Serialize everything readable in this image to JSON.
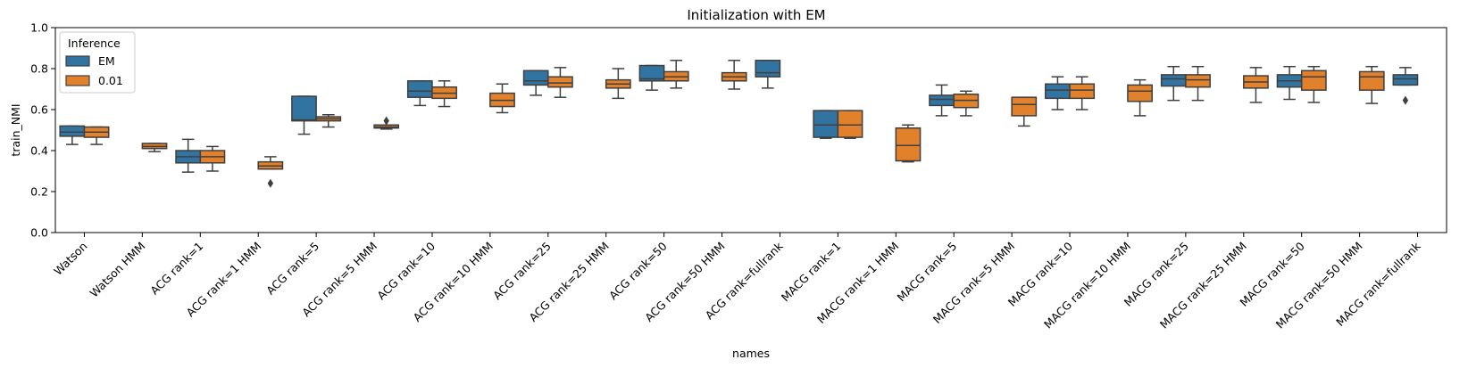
{
  "chart_data": {
    "type": "box",
    "title": "Initialization with EM",
    "xlabel": "names",
    "ylabel": "train_NMI",
    "ylim": [
      0,
      1
    ],
    "yticks": [
      "0.0",
      "0.2",
      "0.4",
      "0.6",
      "0.8",
      "1.0"
    ],
    "grid": false,
    "legend": {
      "title": "Inference",
      "position": "top-left",
      "entries": [
        "EM",
        "0.01"
      ]
    },
    "colors": {
      "EM": "#3274a1",
      "0.01": "#e1812c",
      "line": "#3f3f3f"
    },
    "categories": [
      "Watson",
      "Watson HMM",
      "ACG rank=1",
      "ACG rank=1 HMM",
      "ACG rank=5",
      "ACG rank=5 HMM",
      "ACG rank=10",
      "ACG rank=10 HMM",
      "ACG rank=25",
      "ACG rank=25 HMM",
      "ACG rank=50",
      "ACG rank=50 HMM",
      "ACG rank=fullrank",
      "MACG rank=1",
      "MACG rank=1 HMM",
      "MACG rank=5",
      "MACG rank=5 HMM",
      "MACG rank=10",
      "MACG rank=10 HMM",
      "MACG rank=25",
      "MACG rank=25 HMM",
      "MACG rank=50",
      "MACG rank=50 HMM",
      "MACG rank=fullrank"
    ],
    "series": [
      {
        "name": "EM",
        "boxes": [
          {
            "whislo": 0.43,
            "q1": 0.47,
            "med": 0.49,
            "q3": 0.52,
            "whishi": 0.52,
            "fliers": []
          },
          null,
          {
            "whislo": 0.295,
            "q1": 0.34,
            "med": 0.37,
            "q3": 0.4,
            "whishi": 0.455,
            "fliers": []
          },
          null,
          {
            "whislo": 0.48,
            "q1": 0.545,
            "med": 0.55,
            "q3": 0.665,
            "whishi": 0.665,
            "fliers": []
          },
          null,
          {
            "whislo": 0.62,
            "q1": 0.66,
            "med": 0.69,
            "q3": 0.74,
            "whishi": 0.74,
            "fliers": []
          },
          null,
          {
            "whislo": 0.67,
            "q1": 0.72,
            "med": 0.74,
            "q3": 0.79,
            "whishi": 0.79,
            "fliers": []
          },
          null,
          {
            "whislo": 0.695,
            "q1": 0.74,
            "med": 0.75,
            "q3": 0.815,
            "whishi": 0.815,
            "fliers": []
          },
          null,
          {
            "whislo": 0.705,
            "q1": 0.76,
            "med": 0.78,
            "q3": 0.84,
            "whishi": 0.84,
            "fliers": []
          },
          {
            "whislo": 0.46,
            "q1": 0.465,
            "med": 0.525,
            "q3": 0.595,
            "whishi": 0.595,
            "fliers": []
          },
          null,
          {
            "whislo": 0.57,
            "q1": 0.62,
            "med": 0.65,
            "q3": 0.67,
            "whishi": 0.72,
            "fliers": []
          },
          null,
          {
            "whislo": 0.6,
            "q1": 0.655,
            "med": 0.695,
            "q3": 0.725,
            "whishi": 0.76,
            "fliers": []
          },
          null,
          {
            "whislo": 0.645,
            "q1": 0.715,
            "med": 0.75,
            "q3": 0.77,
            "whishi": 0.81,
            "fliers": []
          },
          null,
          {
            "whislo": 0.65,
            "q1": 0.71,
            "med": 0.74,
            "q3": 0.77,
            "whishi": 0.81,
            "fliers": []
          },
          null,
          {
            "whislo": 0.72,
            "q1": 0.72,
            "med": 0.75,
            "q3": 0.77,
            "whishi": 0.805,
            "fliers": [
              0.645
            ]
          }
        ]
      },
      {
        "name": "0.01",
        "boxes": [
          {
            "whislo": 0.43,
            "q1": 0.465,
            "med": 0.49,
            "q3": 0.515,
            "whishi": 0.515,
            "fliers": []
          },
          {
            "whislo": 0.395,
            "q1": 0.41,
            "med": 0.42,
            "q3": 0.435,
            "whishi": 0.435,
            "fliers": []
          },
          {
            "whislo": 0.3,
            "q1": 0.34,
            "med": 0.37,
            "q3": 0.4,
            "whishi": 0.42,
            "fliers": []
          },
          {
            "whislo": 0.31,
            "q1": 0.31,
            "med": 0.325,
            "q3": 0.345,
            "whishi": 0.37,
            "fliers": [
              0.24
            ]
          },
          {
            "whislo": 0.515,
            "q1": 0.545,
            "med": 0.555,
            "q3": 0.565,
            "whishi": 0.575,
            "fliers": []
          },
          {
            "whislo": 0.505,
            "q1": 0.51,
            "med": 0.515,
            "q3": 0.525,
            "whishi": 0.525,
            "fliers": [
              0.545
            ]
          },
          {
            "whislo": 0.615,
            "q1": 0.655,
            "med": 0.68,
            "q3": 0.71,
            "whishi": 0.74,
            "fliers": []
          },
          {
            "whislo": 0.585,
            "q1": 0.615,
            "med": 0.645,
            "q3": 0.68,
            "whishi": 0.725,
            "fliers": []
          },
          {
            "whislo": 0.66,
            "q1": 0.71,
            "med": 0.73,
            "q3": 0.76,
            "whishi": 0.805,
            "fliers": []
          },
          {
            "whislo": 0.655,
            "q1": 0.705,
            "med": 0.725,
            "q3": 0.745,
            "whishi": 0.8,
            "fliers": []
          },
          {
            "whislo": 0.705,
            "q1": 0.74,
            "med": 0.76,
            "q3": 0.785,
            "whishi": 0.84,
            "fliers": []
          },
          {
            "whislo": 0.7,
            "q1": 0.74,
            "med": 0.76,
            "q3": 0.78,
            "whishi": 0.84,
            "fliers": []
          },
          null,
          {
            "whislo": 0.46,
            "q1": 0.465,
            "med": 0.525,
            "q3": 0.595,
            "whishi": 0.595,
            "fliers": []
          },
          {
            "whislo": 0.345,
            "q1": 0.35,
            "med": 0.425,
            "q3": 0.51,
            "whishi": 0.525,
            "fliers": []
          },
          {
            "whislo": 0.57,
            "q1": 0.61,
            "med": 0.645,
            "q3": 0.675,
            "whishi": 0.69,
            "fliers": []
          },
          {
            "whislo": 0.52,
            "q1": 0.57,
            "med": 0.625,
            "q3": 0.66,
            "whishi": 0.66,
            "fliers": []
          },
          {
            "whislo": 0.6,
            "q1": 0.655,
            "med": 0.695,
            "q3": 0.725,
            "whishi": 0.76,
            "fliers": []
          },
          {
            "whislo": 0.57,
            "q1": 0.64,
            "med": 0.69,
            "q3": 0.72,
            "whishi": 0.745,
            "fliers": []
          },
          {
            "whislo": 0.645,
            "q1": 0.71,
            "med": 0.745,
            "q3": 0.77,
            "whishi": 0.81,
            "fliers": []
          },
          {
            "whislo": 0.635,
            "q1": 0.705,
            "med": 0.735,
            "q3": 0.765,
            "whishi": 0.805,
            "fliers": []
          },
          {
            "whislo": 0.635,
            "q1": 0.695,
            "med": 0.76,
            "q3": 0.79,
            "whishi": 0.81,
            "fliers": []
          },
          {
            "whislo": 0.63,
            "q1": 0.695,
            "med": 0.76,
            "q3": 0.785,
            "whishi": 0.81,
            "fliers": []
          },
          null
        ]
      }
    ]
  }
}
